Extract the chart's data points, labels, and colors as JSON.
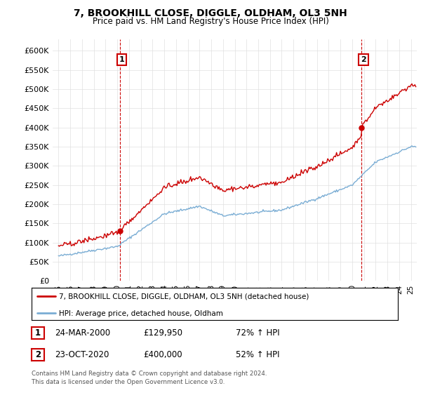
{
  "title": "7, BROOKHILL CLOSE, DIGGLE, OLDHAM, OL3 5NH",
  "subtitle": "Price paid vs. HM Land Registry's House Price Index (HPI)",
  "house_label": "7, BROOKHILL CLOSE, DIGGLE, OLDHAM, OL3 5NH (detached house)",
  "hpi_label": "HPI: Average price, detached house, Oldham",
  "annotation1_date": "24-MAR-2000",
  "annotation1_price": "£129,950",
  "annotation1_hpi": "72% ↑ HPI",
  "annotation2_date": "23-OCT-2020",
  "annotation2_price": "£400,000",
  "annotation2_hpi": "52% ↑ HPI",
  "footer": "Contains HM Land Registry data © Crown copyright and database right 2024.\nThis data is licensed under the Open Government Licence v3.0.",
  "house_color": "#cc0000",
  "hpi_color": "#7aadd4",
  "point1_year": 2000.23,
  "point1_value": 129950,
  "point2_year": 2020.81,
  "point2_value": 400000,
  "ylim_min": 0,
  "ylim_max": 630000,
  "xlim_min": 1994.5,
  "xlim_max": 2025.5
}
